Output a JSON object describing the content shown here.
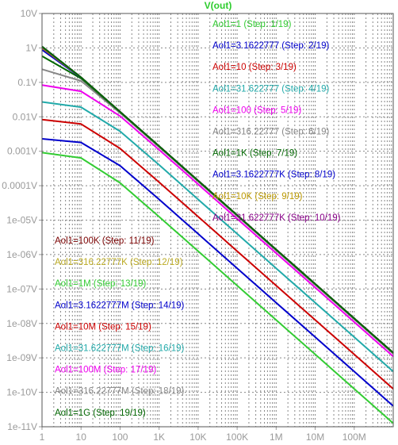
{
  "chart_data": {
    "type": "line",
    "title": "V(out)",
    "xscale": "log",
    "yscale": "log",
    "xlim": [
      1,
      1000000000
    ],
    "ylim": [
      1e-11,
      10
    ],
    "grid": true,
    "x_tick_labels": [
      "1",
      "10",
      "100",
      "1K",
      "10K",
      "100K",
      "1M",
      "10M",
      "100M"
    ],
    "y_tick_labels": [
      "10V",
      "1V",
      "0.1V",
      "0.01V",
      "0.001V",
      "0.0001V",
      "1e-05V",
      "1e-06V",
      "1e-07V",
      "1e-08V",
      "1e-09V",
      "1e-10V",
      "1e-11V"
    ],
    "legend": "top-right and lower-left, inside plot",
    "x": [
      1,
      10,
      100,
      1000,
      10000,
      100000,
      1000000,
      10000000,
      100000000,
      1000000000
    ],
    "series": [
      {
        "name": "Aol1=1  (Step: 1/19)",
        "color": "#33cc33",
        "values": [
          0.00091,
          0.00064,
          0.000121,
          1.25e-05,
          1.26e-06,
          1.26e-07,
          1.26e-08,
          1.26e-09,
          1.26e-10,
          1.26e-11
        ]
      },
      {
        "name": "Aol1=3.1622777  (Step: 2/19)",
        "color": "#0000cc",
        "values": [
          0.0023,
          0.0018,
          0.00038,
          3.99e-05,
          4e-06,
          4e-07,
          4e-08,
          4e-09,
          4e-10,
          4e-11
        ]
      },
      {
        "name": "Aol1=10  (Step: 3/19)",
        "color": "#cc0000",
        "values": [
          0.0083,
          0.0062,
          0.00121,
          0.000126,
          1.26e-05,
          1.26e-06,
          1.26e-07,
          1.26e-08,
          1.26e-09,
          1.26e-10
        ]
      },
      {
        "name": "Aol1=31.622777  (Step: 4/19)",
        "color": "#22aaaa",
        "values": [
          0.027,
          0.019,
          0.0038,
          0.0004,
          4e-05,
          4e-06,
          4e-07,
          4e-08,
          4e-09,
          4e-10
        ]
      },
      {
        "name": "Aol1=100  (Step: 5/19)",
        "color": "#ee00ee",
        "values": [
          0.083,
          0.055,
          0.0105,
          0.0011,
          0.00011,
          1.1e-05,
          1.1e-06,
          1.1e-07,
          1.1e-08,
          1.1e-09
        ]
      },
      {
        "name": "Aol1=316.22777  (Step: 6/19)",
        "color": "#888888",
        "values": [
          0.24,
          0.11,
          0.013,
          0.00132,
          0.000132,
          1.32e-05,
          1.32e-06,
          1.32e-07,
          1.32e-08,
          1.32e-09
        ]
      },
      {
        "name": "Aol1=1K  (Step: 7/19)",
        "color": "#006600",
        "values": [
          0.58,
          0.13,
          0.0138,
          0.00138,
          0.000138,
          1.38e-05,
          1.38e-06,
          1.38e-07,
          1.38e-08,
          1.38e-09
        ]
      },
      {
        "name": "Aol1=3.1622777K  (Step: 8/19)",
        "color": "#0000cc",
        "values": [
          0.88,
          0.138,
          0.0139,
          0.00139,
          0.000139,
          1.39e-05,
          1.39e-06,
          1.39e-07,
          1.39e-08,
          1.39e-09
        ]
      },
      {
        "name": "Aol1=10K  (Step: 9/19)",
        "color": "#bb9900",
        "values": [
          1.0,
          0.139,
          0.0139,
          0.00139,
          0.000139,
          1.39e-05,
          1.39e-06,
          1.39e-07,
          1.39e-08,
          1.39e-09
        ]
      },
      {
        "name": "Aol1=31.622777K  (Step: 10/19)",
        "color": "#880088",
        "values": [
          1.05,
          0.14,
          0.014,
          0.0014,
          0.00014,
          1.4e-05,
          1.4e-06,
          1.4e-07,
          1.4e-08,
          1.4e-09
        ]
      },
      {
        "name": "Aol1=100K  (Step: 11/19)",
        "color": "#7a0000",
        "values": [
          1.08,
          0.14,
          0.014,
          0.0014,
          0.00014,
          1.4e-05,
          1.4e-06,
          1.4e-07,
          1.4e-08,
          1.4e-09
        ]
      },
      {
        "name": "Aol1=316.22777K  (Step: 12/19)",
        "color": "#bbaa22",
        "values": [
          1.09,
          0.14,
          0.014,
          0.0014,
          0.00014,
          1.4e-05,
          1.4e-06,
          1.4e-07,
          1.4e-08,
          1.4e-09
        ]
      },
      {
        "name": "Aol1=1M  (Step: 13/19)",
        "color": "#33cc33",
        "values": [
          1.1,
          0.14,
          0.014,
          0.0014,
          0.00014,
          1.4e-05,
          1.4e-06,
          1.4e-07,
          1.4e-08,
          1.4e-09
        ]
      },
      {
        "name": "Aol1=3.1622777M  (Step: 14/19)",
        "color": "#0000cc",
        "values": [
          1.1,
          0.14,
          0.014,
          0.0014,
          0.00014,
          1.4e-05,
          1.4e-06,
          1.4e-07,
          1.4e-08,
          1.4e-09
        ]
      },
      {
        "name": "Aol1=10M  (Step: 15/19)",
        "color": "#cc0000",
        "values": [
          1.1,
          0.14,
          0.014,
          0.0014,
          0.00014,
          1.4e-05,
          1.4e-06,
          1.4e-07,
          1.4e-08,
          1.4e-09
        ]
      },
      {
        "name": "Aol1=31.622777M  (Step: 16/19)",
        "color": "#22aaaa",
        "values": [
          1.1,
          0.14,
          0.014,
          0.0014,
          0.00014,
          1.4e-05,
          1.4e-06,
          1.4e-07,
          1.4e-08,
          1.4e-09
        ]
      },
      {
        "name": "Aol1=100M  (Step: 17/19)",
        "color": "#ee00ee",
        "values": [
          1.1,
          0.14,
          0.014,
          0.0014,
          0.00014,
          1.4e-05,
          1.4e-06,
          1.4e-07,
          1.4e-08,
          1.4e-09
        ]
      },
      {
        "name": "Aol1=316.22777M  (Step: 18/19)",
        "color": "#888888",
        "values": [
          1.1,
          0.14,
          0.014,
          0.0014,
          0.00014,
          1.4e-05,
          1.4e-06,
          1.4e-07,
          1.4e-08,
          1.4e-09
        ]
      },
      {
        "name": "Aol1=1G  (Step: 19/19)",
        "color": "#006600",
        "values": [
          1.1,
          0.14,
          0.014,
          0.0014,
          0.00014,
          1.4e-05,
          1.4e-06,
          1.4e-07,
          1.4e-08,
          1.4e-09
        ]
      }
    ]
  },
  "axes": {
    "tick_color": "#9a9a9a",
    "grid_color": "#888888",
    "frame_color": "#555555"
  }
}
